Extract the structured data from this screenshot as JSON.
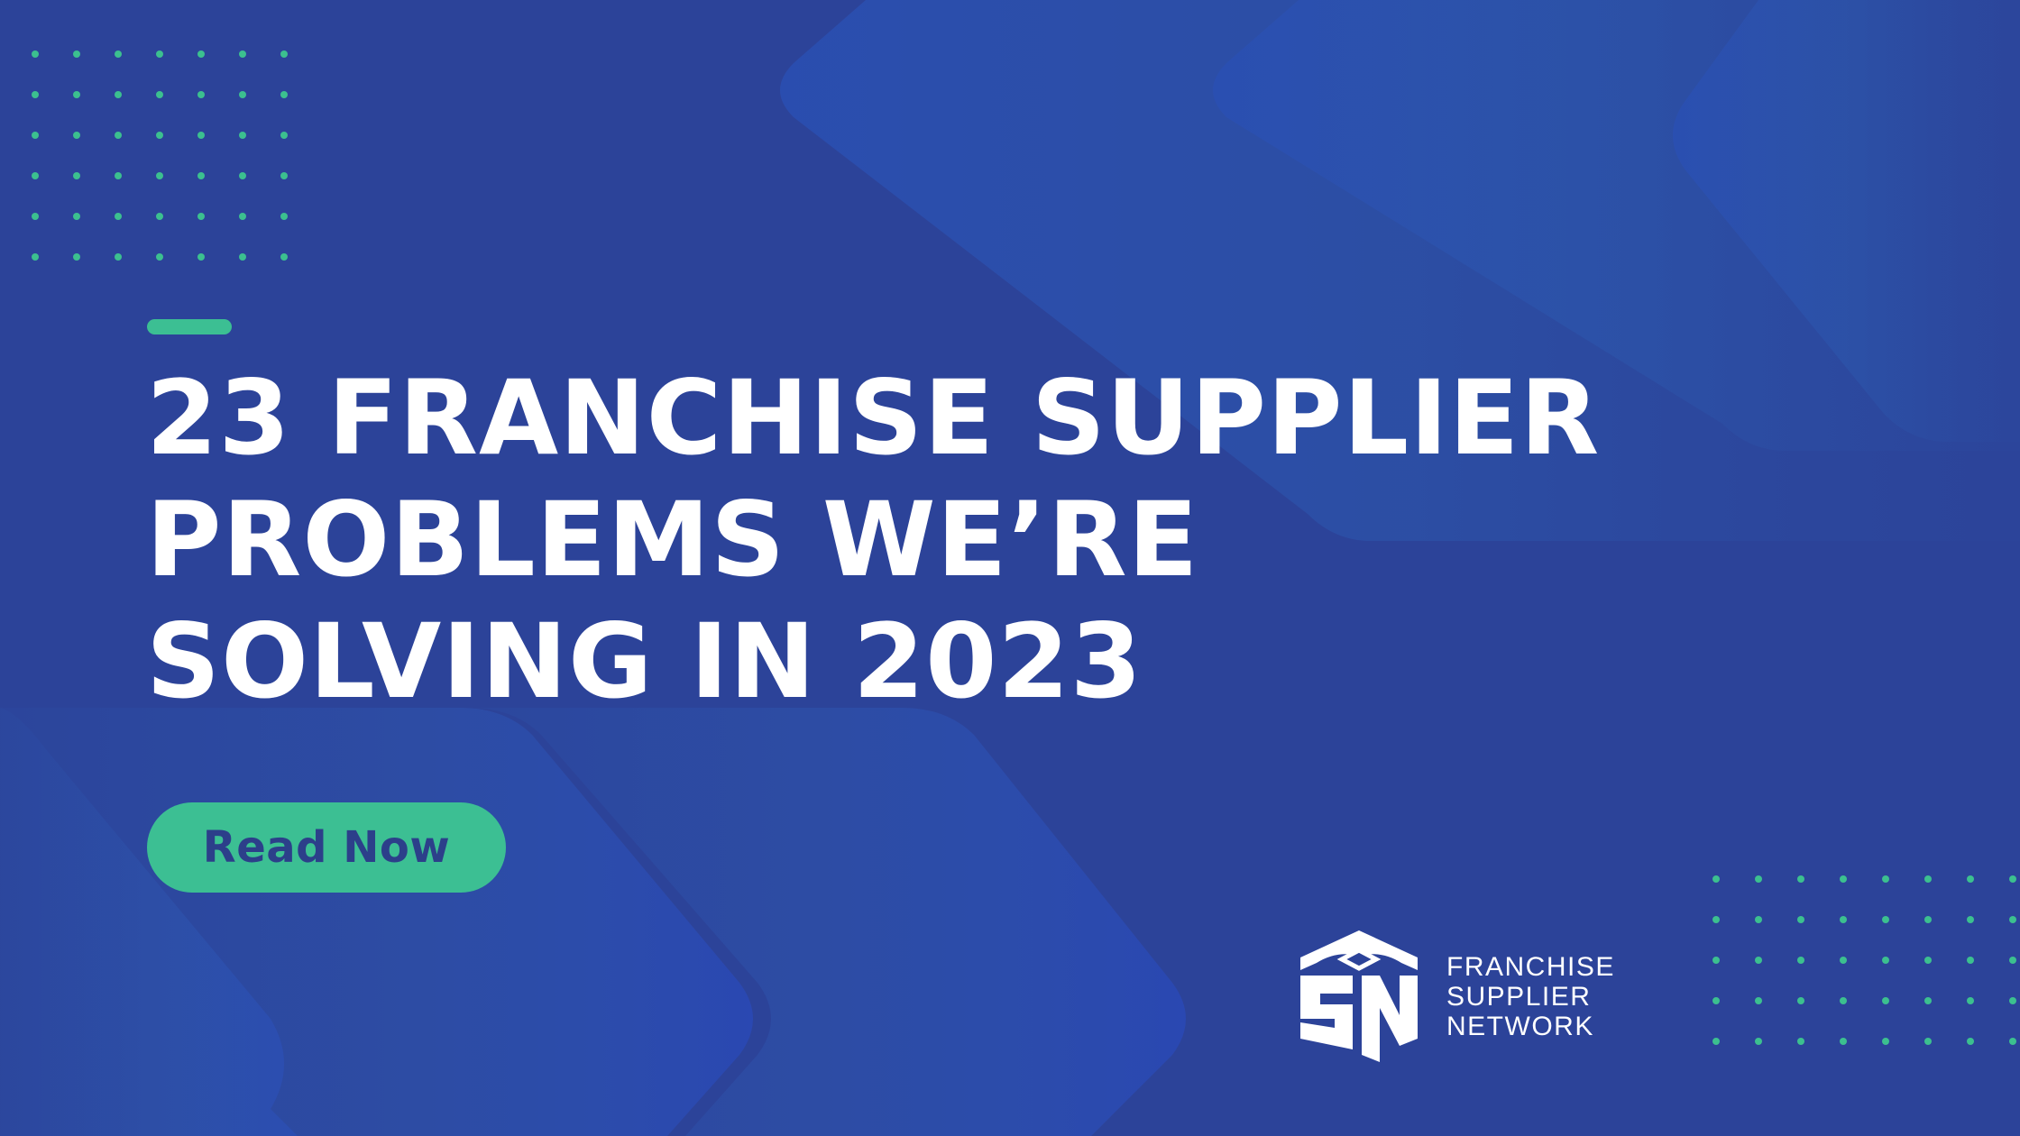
{
  "banner": {
    "headline_lines": [
      "23 FRANCHISE SUPPLIER",
      "PROBLEMS WE’RE",
      "SOLVING IN 2023"
    ],
    "cta_label": "Read Now"
  },
  "logo": {
    "lines": [
      "FRANCHISE",
      "SUPPLIER",
      "NETWORK"
    ]
  },
  "colors": {
    "background": "#2c4399",
    "accent": "#3cbf93",
    "headline": "#ffffff",
    "cta_text": "#2c3f8a"
  }
}
